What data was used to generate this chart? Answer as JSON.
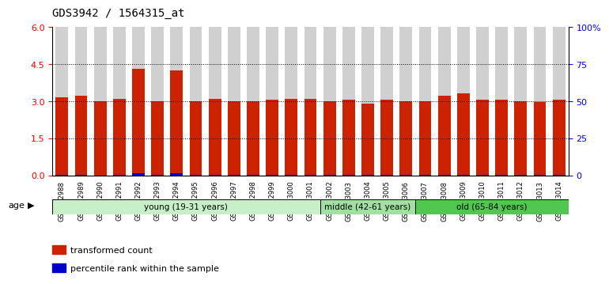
{
  "title": "GDS3942 / 1564315_at",
  "samples": [
    "GSM812988",
    "GSM812989",
    "GSM812990",
    "GSM812991",
    "GSM812992",
    "GSM812993",
    "GSM812994",
    "GSM812995",
    "GSM812996",
    "GSM812997",
    "GSM812998",
    "GSM812999",
    "GSM813000",
    "GSM813001",
    "GSM813002",
    "GSM813003",
    "GSM813004",
    "GSM813005",
    "GSM813006",
    "GSM813007",
    "GSM813008",
    "GSM813009",
    "GSM813010",
    "GSM813011",
    "GSM813012",
    "GSM813013",
    "GSM813014"
  ],
  "transformed_count": [
    3.15,
    3.2,
    3.0,
    3.1,
    4.3,
    3.0,
    4.25,
    3.0,
    3.1,
    3.0,
    3.0,
    3.05,
    3.1,
    3.1,
    3.0,
    3.05,
    2.9,
    3.05,
    3.0,
    3.0,
    3.2,
    3.3,
    3.05,
    3.05,
    3.0,
    2.95,
    3.05
  ],
  "percentile_rank": [
    0.05,
    0.12,
    0.03,
    0.06,
    1.3,
    0.04,
    1.2,
    0.04,
    0.05,
    0.04,
    0.04,
    0.05,
    0.06,
    0.06,
    0.05,
    0.06,
    0.05,
    0.06,
    0.05,
    0.05,
    0.15,
    0.2,
    0.07,
    0.07,
    0.05,
    0.05,
    0.06
  ],
  "groups": [
    {
      "label": "young (19-31 years)",
      "start": 0,
      "end": 14,
      "color": "#c8f0c8"
    },
    {
      "label": "middle (42-61 years)",
      "start": 14,
      "end": 19,
      "color": "#a0e0a0"
    },
    {
      "label": "old (65-84 years)",
      "start": 19,
      "end": 27,
      "color": "#50c850"
    }
  ],
  "ylim_left": [
    0,
    6
  ],
  "ylim_right": [
    0,
    100
  ],
  "yticks_left": [
    0,
    1.5,
    3.0,
    4.5,
    6
  ],
  "yticks_right": [
    0,
    25,
    50,
    75,
    100
  ],
  "bar_color_red": "#cc2200",
  "bar_color_blue": "#0000cc",
  "background_color": "#ffffff",
  "bar_bg_color": "#d0d0d0",
  "legend_red": "transformed count",
  "legend_blue": "percentile rank within the sample"
}
